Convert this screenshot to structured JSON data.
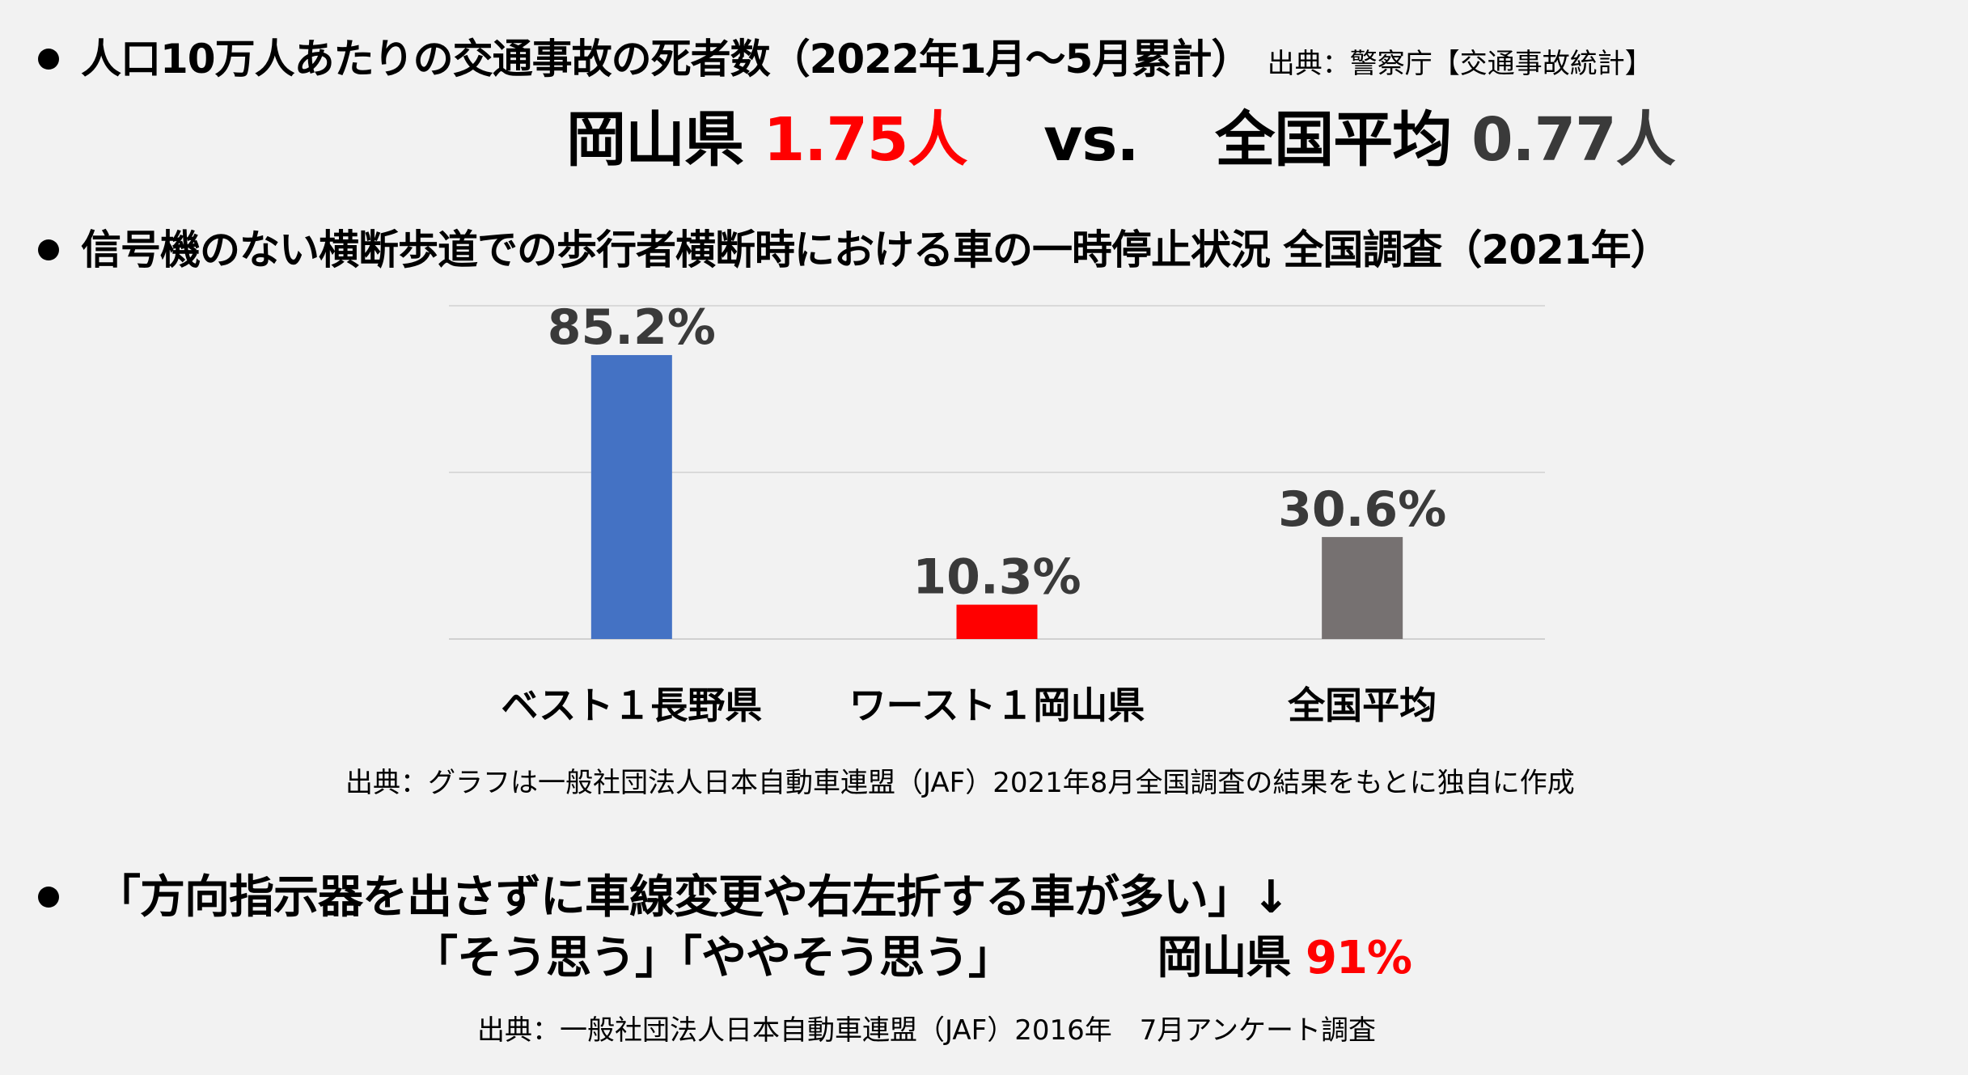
{
  "section1": {
    "heading": "人口10万人あたりの交通事故の死者数（2022年1月～5月累計）",
    "source": "出典：警察庁【交通事故統計】"
  },
  "comparison": {
    "left_label": "岡山県",
    "left_value": "1.75人",
    "vs": "vs.",
    "right_label": "全国平均",
    "right_value": "0.77人"
  },
  "section2": {
    "heading": "信号機のない横断歩道での歩行者横断時における車の一時停止状況 全国調査（2021年）",
    "source": "出典：グラフは一般社団法人日本自動車連盟（JAF）2021年8月全国調査の結果をもとに独自に作成"
  },
  "chart_data": {
    "type": "bar",
    "categories": [
      "ベスト１長野県",
      "ワースト１岡山県",
      "全国平均"
    ],
    "values": [
      85.2,
      10.3,
      30.6
    ],
    "value_labels": [
      "85.2%",
      "10.3%",
      "30.6%"
    ],
    "colors": [
      "#4472c4",
      "#ff0000",
      "#767171"
    ],
    "ylim": [
      0,
      100
    ],
    "grid": true,
    "title": "",
    "xlabel": "",
    "ylabel": ""
  },
  "section3": {
    "line1": "「方向指示器を出さずに車線変更や右左折する車が多い」↓",
    "line2": "「そう思う」「ややそう思う」",
    "region": "岡山県",
    "percent": "91%",
    "source": "出典：一般社団法人日本自動車連盟（JAF）2016年　7月アンケート調査"
  }
}
